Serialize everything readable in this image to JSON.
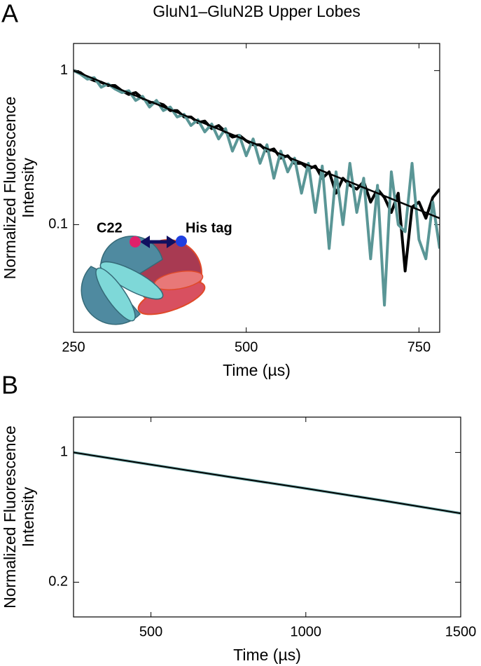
{
  "chart_data": [
    {
      "type": "line",
      "panel": "A",
      "title": "GluN1–GluN2B Upper Lobes",
      "xlabel": "Time (µs)",
      "ylabel": [
        "Normalized Fluorescence",
        "Intensity"
      ],
      "xlim": [
        250,
        780
      ],
      "ylim": [
        0.02,
        1.5
      ],
      "xticks": [
        250,
        500,
        750
      ],
      "yticks": [
        0.1,
        1
      ],
      "log_y": true,
      "annotations": [
        "C22",
        "His tag"
      ],
      "series": [
        {
          "color": "#000000",
          "width": 4,
          "x": [
            250,
            260,
            270,
            280,
            290,
            300,
            310,
            320,
            330,
            340,
            350,
            360,
            370,
            380,
            390,
            400,
            410,
            420,
            430,
            440,
            450,
            460,
            470,
            480,
            490,
            500,
            510,
            520,
            530,
            540,
            550,
            560,
            570,
            580,
            590,
            600,
            610,
            620,
            630,
            640,
            650,
            660,
            670,
            680,
            690,
            700,
            710,
            720,
            730,
            740,
            750,
            760,
            770,
            780
          ],
          "values": [
            1.0,
            0.97,
            0.9,
            0.86,
            0.84,
            0.8,
            0.8,
            0.74,
            0.7,
            0.72,
            0.66,
            0.62,
            0.62,
            0.6,
            0.55,
            0.55,
            0.5,
            0.5,
            0.46,
            0.47,
            0.42,
            0.44,
            0.4,
            0.37,
            0.38,
            0.35,
            0.33,
            0.33,
            0.3,
            0.31,
            0.27,
            0.28,
            0.25,
            0.25,
            0.23,
            0.24,
            0.2,
            0.22,
            0.16,
            0.2,
            0.18,
            0.17,
            0.19,
            0.14,
            0.17,
            0.15,
            0.12,
            0.16,
            0.05,
            0.13,
            0.14,
            0.11,
            0.15,
            0.17
          ]
        },
        {
          "color": "#5a9696",
          "width": 4,
          "x": [
            250,
            260,
            270,
            280,
            290,
            300,
            310,
            320,
            330,
            340,
            350,
            360,
            370,
            380,
            390,
            400,
            410,
            420,
            430,
            440,
            450,
            460,
            470,
            480,
            490,
            500,
            510,
            520,
            530,
            540,
            550,
            560,
            570,
            580,
            590,
            600,
            610,
            620,
            630,
            640,
            650,
            660,
            670,
            680,
            690,
            700,
            710,
            720,
            730,
            740,
            750,
            760,
            770,
            780
          ],
          "values": [
            1.0,
            0.95,
            0.88,
            0.9,
            0.78,
            0.82,
            0.76,
            0.72,
            0.74,
            0.64,
            0.68,
            0.58,
            0.64,
            0.55,
            0.58,
            0.5,
            0.52,
            0.44,
            0.48,
            0.4,
            0.45,
            0.36,
            0.42,
            0.3,
            0.38,
            0.28,
            0.36,
            0.25,
            0.33,
            0.2,
            0.3,
            0.22,
            0.27,
            0.16,
            0.25,
            0.12,
            0.24,
            0.07,
            0.22,
            0.1,
            0.25,
            0.12,
            0.2,
            0.06,
            0.18,
            0.03,
            0.22,
            0.1,
            0.09,
            0.25,
            0.08,
            0.06,
            0.14,
            0.07
          ]
        },
        {
          "color": "#000000",
          "width": 2.5,
          "x": [
            250,
            780
          ],
          "values": [
            1.0,
            0.11
          ]
        }
      ]
    },
    {
      "type": "line",
      "panel": "B",
      "xlabel": "Time (µs)",
      "ylabel": [
        "Normalized Fluorescence",
        "Intensity"
      ],
      "xlim": [
        250,
        1500
      ],
      "ylim": [
        0.13,
        1.55
      ],
      "xticks": [
        500,
        1000,
        1500
      ],
      "yticks": [
        0.2,
        1
      ],
      "log_y": true,
      "series": [
        {
          "color": "#7ab4b4",
          "width": 4,
          "x": [
            250,
            500,
            750,
            1000,
            1250,
            1500
          ],
          "values": [
            1.0,
            0.86,
            0.74,
            0.64,
            0.55,
            0.47
          ]
        },
        {
          "color": "#000000",
          "width": 2,
          "x": [
            250,
            500,
            750,
            1000,
            1250,
            1500
          ],
          "values": [
            1.0,
            0.86,
            0.74,
            0.64,
            0.55,
            0.47
          ]
        }
      ]
    }
  ]
}
